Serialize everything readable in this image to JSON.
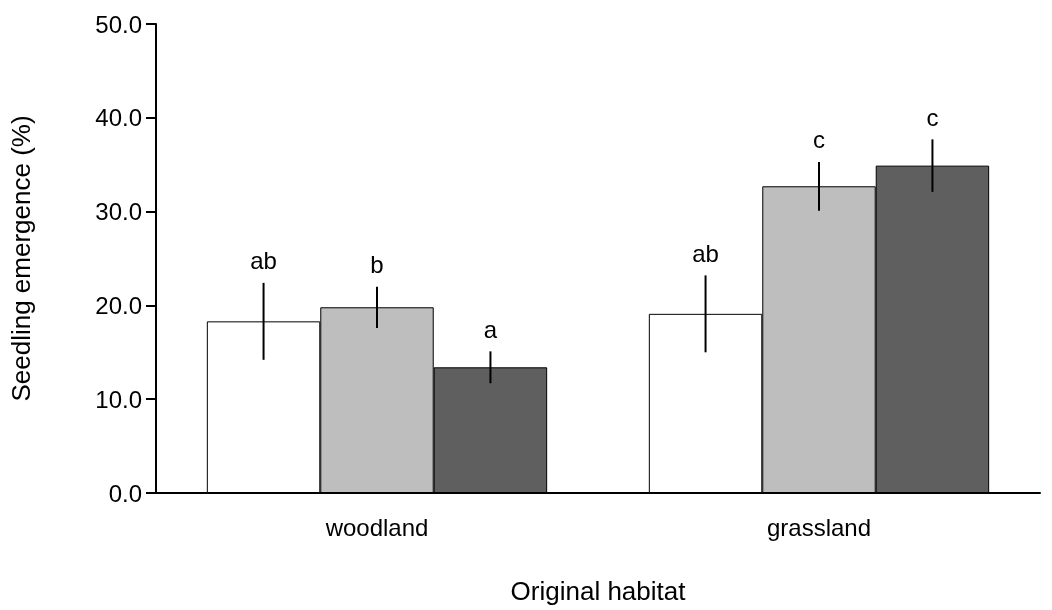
{
  "chart_data": {
    "type": "bar",
    "xlabel": "Original habitat",
    "ylabel": "Seedling emergence (%)",
    "categories": [
      "woodland",
      "grassland"
    ],
    "series": [
      {
        "color": "#ffffff",
        "values": [
          18.3,
          19.1
        ],
        "errors": [
          4.1,
          4.1
        ],
        "value_labels": [
          "ab",
          "ab"
        ]
      },
      {
        "color": "#bebebe",
        "values": [
          19.8,
          32.7
        ],
        "errors": [
          2.2,
          2.6
        ],
        "value_labels": [
          "b",
          "c"
        ]
      },
      {
        "color": "#5f5f5f",
        "values": [
          13.4,
          34.9
        ],
        "errors": [
          1.7,
          2.8
        ],
        "value_labels": [
          "a",
          "c"
        ]
      }
    ],
    "ylim": [
      0,
      50
    ],
    "yticks": [
      {
        "value": 0,
        "label": "0.0"
      },
      {
        "value": 10,
        "label": "10.0"
      },
      {
        "value": 20,
        "label": "20.0"
      },
      {
        "value": 30,
        "label": "30.0"
      },
      {
        "value": 40,
        "label": "40.0"
      },
      {
        "value": 50,
        "label": "50.0"
      }
    ],
    "grid": false
  }
}
